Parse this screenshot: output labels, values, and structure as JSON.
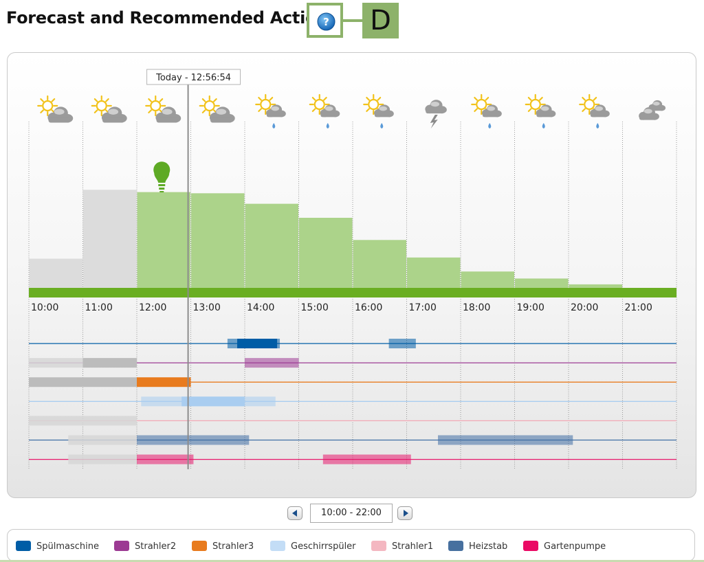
{
  "header": {
    "title": "Forecast and Recommended Action",
    "callout_letter": "D"
  },
  "chart": {
    "tooltip": "Today - 12:56:54",
    "now_hour": 12.95,
    "hours": [
      "10:00",
      "11:00",
      "12:00",
      "13:00",
      "14:00",
      "15:00",
      "16:00",
      "17:00",
      "18:00",
      "19:00",
      "20:00",
      "21:00"
    ],
    "weather": [
      "sun-cloud-icon",
      "sun-cloud-icon",
      "sun-cloud-icon",
      "sun-cloud-icon",
      "sun-rain-icon",
      "sun-rain-icon",
      "sun-rain-icon",
      "thunderstorm-icon",
      "sun-rain-icon",
      "sun-rain-icon",
      "sun-rain-icon",
      "clouds-icon"
    ],
    "recommended_icon": "lightbulb-icon",
    "recommended_hour": 12
  },
  "chart_data": {
    "type": "bar",
    "categories": [
      "10:00",
      "11:00",
      "12:00",
      "13:00",
      "14:00",
      "15:00",
      "16:00",
      "17:00",
      "18:00",
      "19:00",
      "20:00",
      "21:00"
    ],
    "values": [
      1.25,
      4.2,
      4.1,
      4.05,
      3.6,
      3.0,
      2.05,
      1.3,
      0.7,
      0.4,
      0.15,
      0
    ],
    "past_categories": [
      "10:00",
      "11:00"
    ],
    "colors": {
      "past": "#dcdcdc",
      "forecast": "#acd38a",
      "baseline": "#6aae22"
    }
  },
  "schedule": {
    "rows": [
      {
        "device": "Spülmaschine",
        "color": "#005da6",
        "blocks": [
          {
            "start": 13.68,
            "end": 14.65,
            "style": "light"
          },
          {
            "start": 13.86,
            "end": 14.6,
            "style": "solid"
          },
          {
            "start": 16.67,
            "end": 17.17,
            "style": "light"
          }
        ]
      },
      {
        "device": "Strahler2",
        "color": "#9c3a93",
        "blocks": [
          {
            "start": 10.0,
            "end": 11.0,
            "style": "gray-light"
          },
          {
            "start": 11.0,
            "end": 12.0,
            "style": "gray"
          },
          {
            "start": 14.0,
            "end": 15.0,
            "style": "light"
          }
        ]
      },
      {
        "device": "Strahler3",
        "color": "#e87b1e",
        "blocks": [
          {
            "start": 10.0,
            "end": 12.0,
            "style": "gray"
          },
          {
            "start": 12.0,
            "end": 13.0,
            "style": "solid"
          }
        ]
      },
      {
        "device": "Geschirrspüler",
        "color": "#a9cdf0",
        "blocks": [
          {
            "start": 12.08,
            "end": 14.57,
            "style": "light"
          },
          {
            "start": 12.83,
            "end": 14.0,
            "style": "solid"
          }
        ]
      },
      {
        "device": "Strahler1",
        "color": "#f2a7b4",
        "blocks": [
          {
            "start": 10.0,
            "end": 12.0,
            "style": "gray-light"
          }
        ]
      },
      {
        "device": "Heizstab",
        "color": "#3f6ea4",
        "blocks": [
          {
            "start": 10.73,
            "end": 12.0,
            "style": "gray-light"
          },
          {
            "start": 12.0,
            "end": 14.08,
            "style": "light"
          },
          {
            "start": 17.58,
            "end": 20.08,
            "style": "light"
          }
        ]
      },
      {
        "device": "Gartenpumpe",
        "color": "#e8196d",
        "blocks": [
          {
            "start": 10.73,
            "end": 12.0,
            "style": "gray-light"
          },
          {
            "start": 12.0,
            "end": 13.05,
            "style": "light"
          },
          {
            "start": 15.45,
            "end": 17.08,
            "style": "light"
          }
        ]
      }
    ]
  },
  "navigation": {
    "range": "10:00 - 22:00"
  },
  "legend": [
    {
      "label": "Spülmaschine",
      "color": "#005da6"
    },
    {
      "label": "Strahler2",
      "color": "#9c3a93"
    },
    {
      "label": "Strahler3",
      "color": "#e87b1e"
    },
    {
      "label": "Geschirrspüler",
      "color": "#c3ddf6"
    },
    {
      "label": "Strahler1",
      "color": "#f4b7c1"
    },
    {
      "label": "Heizstab",
      "color": "#47709f"
    },
    {
      "label": "Gartenpumpe",
      "color": "#ea0a64"
    }
  ]
}
